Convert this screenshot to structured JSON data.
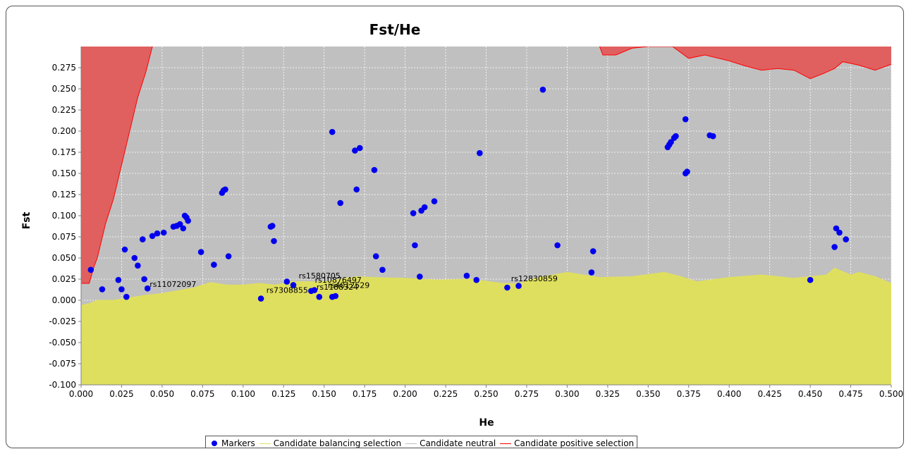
{
  "chart_data": {
    "type": "scatter",
    "title": "Fst/He",
    "xlabel": "He",
    "ylabel": "Fst",
    "xlim": [
      0.0,
      0.5
    ],
    "ylim": [
      -0.1,
      0.3
    ],
    "x_ticks": [
      "0.000",
      "0.025",
      "0.050",
      "0.075",
      "0.100",
      "0.125",
      "0.150",
      "0.175",
      "0.200",
      "0.225",
      "0.250",
      "0.275",
      "0.300",
      "0.325",
      "0.350",
      "0.375",
      "0.400",
      "0.425",
      "0.450",
      "0.475",
      "0.500"
    ],
    "y_ticks": [
      "-0.100",
      "-0.075",
      "-0.050",
      "-0.025",
      "0.000",
      "0.025",
      "0.050",
      "0.075",
      "0.100",
      "0.125",
      "0.150",
      "0.175",
      "0.200",
      "0.225",
      "0.250",
      "0.275"
    ],
    "grid": true,
    "legend_position": "bottom",
    "colors": {
      "markers": "#0000ee",
      "balancing": "#dfdf5f",
      "neutral": "#c0c0c0",
      "positive": "#e06060",
      "positive_line": "#ff0000"
    },
    "regions": {
      "balancing_upper": [
        [
          0.0,
          -0.006
        ],
        [
          0.005,
          -0.004
        ],
        [
          0.01,
          0.0
        ],
        [
          0.02,
          0.0
        ],
        [
          0.03,
          0.003
        ],
        [
          0.04,
          0.006
        ],
        [
          0.05,
          0.008
        ],
        [
          0.07,
          0.015
        ],
        [
          0.08,
          0.021
        ],
        [
          0.09,
          0.018
        ],
        [
          0.1,
          0.018
        ],
        [
          0.11,
          0.02
        ],
        [
          0.12,
          0.018
        ],
        [
          0.13,
          0.022
        ],
        [
          0.15,
          0.022
        ],
        [
          0.16,
          0.025
        ],
        [
          0.17,
          0.028
        ],
        [
          0.18,
          0.027
        ],
        [
          0.2,
          0.026
        ],
        [
          0.22,
          0.024
        ],
        [
          0.24,
          0.025
        ],
        [
          0.26,
          0.02
        ],
        [
          0.27,
          0.02
        ],
        [
          0.28,
          0.026
        ],
        [
          0.3,
          0.033
        ],
        [
          0.32,
          0.027
        ],
        [
          0.34,
          0.028
        ],
        [
          0.36,
          0.033
        ],
        [
          0.37,
          0.028
        ],
        [
          0.38,
          0.022
        ],
        [
          0.4,
          0.027
        ],
        [
          0.42,
          0.03
        ],
        [
          0.44,
          0.026
        ],
        [
          0.45,
          0.028
        ],
        [
          0.46,
          0.03
        ],
        [
          0.465,
          0.038
        ],
        [
          0.475,
          0.03
        ],
        [
          0.48,
          0.033
        ],
        [
          0.49,
          0.028
        ],
        [
          0.5,
          0.02
        ]
      ],
      "positive_left_boundary": [
        [
          0.0,
          0.02
        ],
        [
          0.005,
          0.02
        ],
        [
          0.008,
          0.04
        ],
        [
          0.01,
          0.05
        ],
        [
          0.015,
          0.09
        ],
        [
          0.02,
          0.12
        ],
        [
          0.025,
          0.16
        ],
        [
          0.03,
          0.2
        ],
        [
          0.035,
          0.24
        ],
        [
          0.04,
          0.27
        ],
        [
          0.044,
          0.3
        ]
      ],
      "positive_top": [
        [
          0.32,
          0.3
        ],
        [
          0.322,
          0.29
        ],
        [
          0.33,
          0.29
        ],
        [
          0.34,
          0.298
        ],
        [
          0.35,
          0.3
        ],
        [
          0.365,
          0.3
        ],
        [
          0.375,
          0.286
        ],
        [
          0.385,
          0.29
        ],
        [
          0.4,
          0.283
        ],
        [
          0.41,
          0.277
        ],
        [
          0.42,
          0.272
        ],
        [
          0.43,
          0.274
        ],
        [
          0.44,
          0.272
        ],
        [
          0.45,
          0.262
        ],
        [
          0.458,
          0.268
        ],
        [
          0.465,
          0.274
        ],
        [
          0.47,
          0.282
        ],
        [
          0.48,
          0.278
        ],
        [
          0.49,
          0.272
        ],
        [
          0.5,
          0.279
        ]
      ]
    },
    "points": [
      {
        "x": 0.006,
        "y": 0.036
      },
      {
        "x": 0.013,
        "y": 0.013
      },
      {
        "x": 0.023,
        "y": 0.024
      },
      {
        "x": 0.025,
        "y": 0.013
      },
      {
        "x": 0.027,
        "y": 0.06
      },
      {
        "x": 0.028,
        "y": 0.004
      },
      {
        "x": 0.033,
        "y": 0.05
      },
      {
        "x": 0.035,
        "y": 0.041
      },
      {
        "x": 0.038,
        "y": 0.072
      },
      {
        "x": 0.039,
        "y": 0.025
      },
      {
        "x": 0.041,
        "y": 0.014
      },
      {
        "x": 0.044,
        "y": 0.076
      },
      {
        "x": 0.047,
        "y": 0.079
      },
      {
        "x": 0.051,
        "y": 0.08
      },
      {
        "x": 0.057,
        "y": 0.087
      },
      {
        "x": 0.059,
        "y": 0.088
      },
      {
        "x": 0.061,
        "y": 0.09
      },
      {
        "x": 0.063,
        "y": 0.085
      },
      {
        "x": 0.064,
        "y": 0.1
      },
      {
        "x": 0.065,
        "y": 0.098
      },
      {
        "x": 0.066,
        "y": 0.094
      },
      {
        "x": 0.074,
        "y": 0.057
      },
      {
        "x": 0.082,
        "y": 0.042
      },
      {
        "x": 0.087,
        "y": 0.127
      },
      {
        "x": 0.088,
        "y": 0.13
      },
      {
        "x": 0.089,
        "y": 0.131
      },
      {
        "x": 0.091,
        "y": 0.052
      },
      {
        "x": 0.111,
        "y": 0.002
      },
      {
        "x": 0.117,
        "y": 0.087
      },
      {
        "x": 0.118,
        "y": 0.088
      },
      {
        "x": 0.119,
        "y": 0.07
      },
      {
        "x": 0.127,
        "y": 0.022
      },
      {
        "x": 0.131,
        "y": 0.018
      },
      {
        "x": 0.142,
        "y": 0.011
      },
      {
        "x": 0.144,
        "y": 0.012
      },
      {
        "x": 0.147,
        "y": 0.004
      },
      {
        "x": 0.155,
        "y": 0.199
      },
      {
        "x": 0.155,
        "y": 0.004
      },
      {
        "x": 0.157,
        "y": 0.005
      },
      {
        "x": 0.16,
        "y": 0.115
      },
      {
        "x": 0.169,
        "y": 0.177
      },
      {
        "x": 0.17,
        "y": 0.131
      },
      {
        "x": 0.172,
        "y": 0.18
      },
      {
        "x": 0.181,
        "y": 0.154
      },
      {
        "x": 0.182,
        "y": 0.052
      },
      {
        "x": 0.186,
        "y": 0.036
      },
      {
        "x": 0.205,
        "y": 0.103
      },
      {
        "x": 0.206,
        "y": 0.065
      },
      {
        "x": 0.209,
        "y": 0.028
      },
      {
        "x": 0.21,
        "y": 0.106
      },
      {
        "x": 0.212,
        "y": 0.11
      },
      {
        "x": 0.218,
        "y": 0.117
      },
      {
        "x": 0.238,
        "y": 0.029
      },
      {
        "x": 0.244,
        "y": 0.024
      },
      {
        "x": 0.246,
        "y": 0.174
      },
      {
        "x": 0.263,
        "y": 0.015
      },
      {
        "x": 0.27,
        "y": 0.017
      },
      {
        "x": 0.285,
        "y": 0.249
      },
      {
        "x": 0.294,
        "y": 0.065
      },
      {
        "x": 0.315,
        "y": 0.033
      },
      {
        "x": 0.316,
        "y": 0.058
      },
      {
        "x": 0.362,
        "y": 0.181
      },
      {
        "x": 0.363,
        "y": 0.184
      },
      {
        "x": 0.364,
        "y": 0.187
      },
      {
        "x": 0.366,
        "y": 0.192
      },
      {
        "x": 0.367,
        "y": 0.194
      },
      {
        "x": 0.373,
        "y": 0.214
      },
      {
        "x": 0.373,
        "y": 0.15
      },
      {
        "x": 0.374,
        "y": 0.152
      },
      {
        "x": 0.388,
        "y": 0.195
      },
      {
        "x": 0.39,
        "y": 0.194
      },
      {
        "x": 0.45,
        "y": 0.024
      },
      {
        "x": 0.465,
        "y": 0.063
      },
      {
        "x": 0.466,
        "y": 0.085
      },
      {
        "x": 0.468,
        "y": 0.08
      },
      {
        "x": 0.472,
        "y": 0.072
      }
    ],
    "point_labels": [
      {
        "text": "rs11072097",
        "x": 0.041,
        "y": 0.014
      },
      {
        "text": "rs7308855",
        "x": 0.113,
        "y": 0.007
      },
      {
        "text": "rs1580705",
        "x": 0.133,
        "y": 0.024
      },
      {
        "text": "rs10876497",
        "x": 0.143,
        "y": 0.019
      },
      {
        "text": "rs4012529",
        "x": 0.151,
        "y": 0.013
      },
      {
        "text": "rs1188324",
        "x": 0.144,
        "y": 0.011
      },
      {
        "text": "rs12830859",
        "x": 0.264,
        "y": 0.021
      }
    ]
  },
  "legend": {
    "markers": "Markers",
    "balancing": "Candidate balancing selection",
    "neutral": "Candidate neutral",
    "positive": "Candidate positive selection"
  }
}
